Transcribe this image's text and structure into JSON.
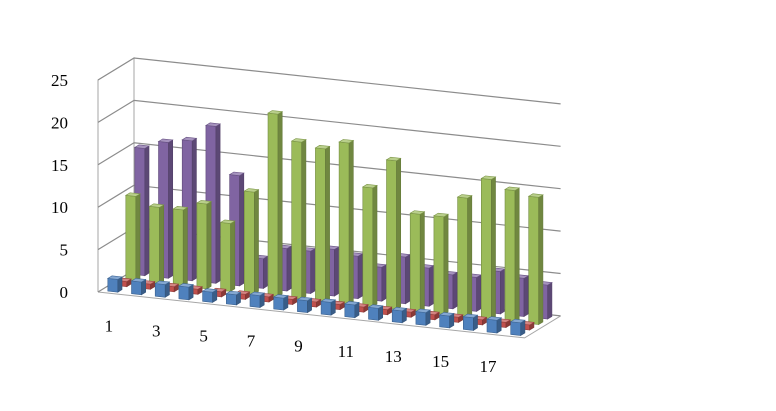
{
  "chart_data": {
    "type": "bar",
    "title": "",
    "xlabel": "",
    "ylabel": "",
    "ylim": [
      0,
      25
    ],
    "y_ticks": [
      "0",
      "5",
      "10",
      "15",
      "20",
      "25"
    ],
    "categories": [
      "1",
      "2",
      "3",
      "4",
      "5",
      "6",
      "7",
      "8",
      "9",
      "10",
      "11",
      "12",
      "13",
      "14",
      "15",
      "16",
      "17",
      "18"
    ],
    "x_tick_labels": [
      "1",
      "3",
      "5",
      "7",
      "9",
      "11",
      "13",
      "15",
      "17"
    ],
    "grid": true,
    "legend": "none",
    "series": [
      {
        "color": "#4f81bd",
        "values": [
          1.5,
          1.5,
          1.5,
          1.5,
          1.2,
          1.2,
          1.4,
          1.4,
          1.4,
          1.5,
          1.5,
          1.4,
          1.4,
          1.5,
          1.4,
          1.5,
          1.5,
          1.5
        ]
      },
      {
        "color": "#c0504d",
        "values": [
          0.6,
          0.6,
          0.6,
          0.6,
          0.6,
          0.6,
          0.6,
          0.6,
          0.6,
          0.6,
          0.6,
          0.6,
          0.6,
          0.6,
          0.6,
          0.6,
          0.6,
          0.6
        ]
      },
      {
        "color": "#9bbb59",
        "values": [
          10,
          9,
          9,
          10,
          8,
          12,
          21.5,
          18.5,
          18,
          19,
          14,
          17.5,
          11.5,
          11.5,
          14,
          16.5,
          15.5,
          15
        ]
      },
      {
        "color": "#8064a2",
        "values": [
          15,
          16,
          16.5,
          18.5,
          13,
          3.5,
          5,
          5,
          5.5,
          5,
          4,
          5.5,
          4.5,
          4,
          4,
          5,
          4.5,
          4
        ]
      }
    ]
  }
}
